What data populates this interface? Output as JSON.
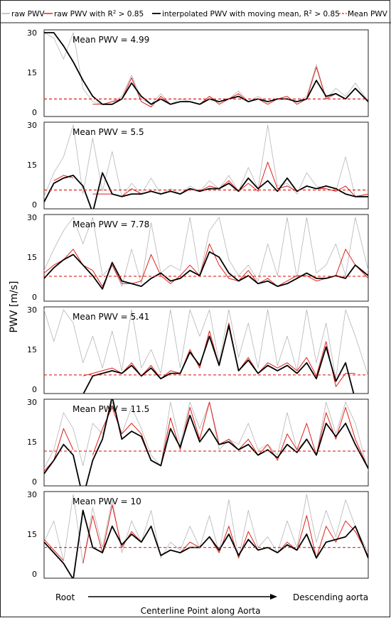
{
  "legend": {
    "raw": "raw PWV",
    "filtered_prefix": "raw PWV with R",
    "filtered_sup": "2",
    "filtered_suffix": " > 0.85",
    "smooth_prefix": "interpolated PWV with moving mean, R",
    "smooth_sup": "2",
    "smooth_suffix": " > 0.85",
    "mean": "Mean PWV"
  },
  "ylabel": "PWV [m/s]",
  "xlabel": "Centerline Point along Aorta",
  "arrow_start_label": "Root",
  "arrow_end_label": "Descending aorta",
  "colors": {
    "raw": "#b5b5b5",
    "filtered": "#e0201b",
    "smooth": "#000000",
    "mean": "#e0201b"
  },
  "chart_data": [
    {
      "type": "line",
      "mean_label": "Mean PWV = 4.99",
      "mean": 4.99,
      "ylim": [
        0,
        30
      ],
      "yticks": [
        0,
        15,
        30
      ],
      "x": [
        0,
        3,
        6,
        9,
        12,
        15,
        18,
        21,
        24,
        27,
        30,
        33,
        36,
        39,
        42,
        45,
        48,
        51,
        54,
        57,
        60,
        63,
        66,
        69,
        72,
        75,
        78,
        81,
        84,
        87,
        90,
        93,
        96,
        100
      ],
      "series": [
        {
          "name": "raw PWV",
          "values": [
            30,
            28,
            20,
            30,
            9,
            4,
            3,
            4,
            6,
            14,
            5,
            3,
            7,
            3,
            5,
            4,
            3,
            6,
            4,
            5,
            8,
            4,
            6,
            4,
            5,
            5,
            4,
            6,
            18,
            5,
            9,
            6,
            11,
            4
          ]
        },
        {
          "name": "raw PWV with R2 > 0.85",
          "values": [
            null,
            null,
            null,
            null,
            null,
            3,
            3,
            4,
            5,
            13,
            4,
            2,
            6,
            3,
            4,
            4,
            3,
            6,
            3,
            5,
            7,
            4,
            5,
            3,
            5,
            6,
            3,
            5,
            17,
            5,
            7,
            5,
            9,
            4
          ]
        },
        {
          "name": "interpolated PWV with moving mean, R2 > 0.85",
          "values": [
            30,
            30,
            25,
            19,
            12,
            6,
            3,
            3,
            5,
            11,
            6,
            3,
            5,
            3,
            4,
            4,
            3,
            5,
            4,
            5,
            6,
            4,
            5,
            4,
            5,
            5,
            4,
            5,
            12,
            6,
            7,
            5,
            9,
            4
          ]
        }
      ]
    },
    {
      "type": "line",
      "mean_label": "Mean PWV = 5.5",
      "mean": 5.5,
      "ylim": [
        0,
        30
      ],
      "yticks": [
        0,
        15,
        30
      ],
      "x": [
        0,
        3,
        6,
        9,
        12,
        15,
        18,
        21,
        24,
        27,
        30,
        33,
        36,
        39,
        42,
        45,
        48,
        51,
        54,
        57,
        60,
        63,
        66,
        69,
        72,
        75,
        78,
        81,
        84,
        87,
        90,
        93,
        96,
        100
      ],
      "series": [
        {
          "name": "raw PWV",
          "values": [
            3,
            12,
            18,
            30,
            4,
            25,
            5,
            20,
            3,
            8,
            4,
            10,
            4,
            6,
            4,
            7,
            5,
            9,
            6,
            11,
            5,
            14,
            6,
            30,
            7,
            8,
            4,
            12,
            7,
            6,
            5,
            18,
            3,
            4
          ]
        },
        {
          "name": "raw PWV with R2 > 0.85",
          "values": [
            null,
            9,
            11,
            10,
            null,
            4,
            4,
            4,
            3,
            6,
            4,
            5,
            4,
            5,
            4,
            6,
            5,
            7,
            6,
            9,
            5,
            8,
            5,
            16,
            6,
            7,
            5,
            7,
            6,
            6,
            5,
            7,
            3,
            4
          ]
        },
        {
          "name": "interpolated PWV with moving mean, R2 > 0.85",
          "values": [
            1,
            8,
            10,
            11,
            7,
            -3,
            12,
            4,
            3,
            4,
            4,
            5,
            4,
            5,
            4,
            6,
            5,
            6,
            6,
            8,
            5,
            10,
            6,
            9,
            5,
            10,
            5,
            7,
            6,
            7,
            6,
            4,
            3,
            3
          ]
        }
      ]
    },
    {
      "type": "line",
      "mean_label": "Mean PWV = 7.78",
      "mean": 7.78,
      "ylim": [
        0,
        30
      ],
      "yticks": [
        0,
        15,
        30
      ],
      "x": [
        0,
        3,
        6,
        9,
        12,
        15,
        18,
        21,
        24,
        27,
        30,
        33,
        36,
        39,
        42,
        45,
        48,
        51,
        54,
        57,
        60,
        63,
        66,
        69,
        72,
        75,
        78,
        81,
        84,
        87,
        90,
        93,
        96,
        100
      ],
      "series": [
        {
          "name": "raw PWV",
          "values": [
            10,
            18,
            25,
            30,
            20,
            30,
            8,
            12,
            4,
            18,
            5,
            28,
            9,
            12,
            10,
            30,
            8,
            25,
            30,
            14,
            8,
            12,
            6,
            20,
            8,
            30,
            7,
            30,
            9,
            12,
            20,
            8,
            30,
            10
          ]
        },
        {
          "name": "raw PWV with R2 > 0.85",
          "values": [
            9,
            12,
            14,
            18,
            12,
            10,
            4,
            12,
            5,
            5,
            6,
            16,
            8,
            5,
            8,
            12,
            8,
            20,
            12,
            7,
            6,
            10,
            5,
            7,
            4,
            6,
            8,
            8,
            6,
            7,
            8,
            18,
            12,
            7
          ]
        },
        {
          "name": "interpolated PWV with moving mean, R2 > 0.85",
          "values": [
            7,
            11,
            14,
            16,
            12,
            8,
            3,
            13,
            6,
            5,
            4,
            7,
            9,
            6,
            7,
            10,
            8,
            17,
            15,
            9,
            6,
            8,
            5,
            6,
            4,
            5,
            7,
            9,
            7,
            7,
            8,
            7,
            12,
            8
          ]
        }
      ]
    },
    {
      "type": "line",
      "mean_label": "Mean PWV = 5.41",
      "mean": 5.41,
      "ylim": [
        0,
        30
      ],
      "yticks": [
        0,
        15,
        30
      ],
      "x": [
        0,
        3,
        6,
        9,
        12,
        15,
        18,
        21,
        24,
        27,
        30,
        33,
        36,
        39,
        42,
        45,
        48,
        51,
        54,
        57,
        60,
        63,
        66,
        69,
        72,
        75,
        78,
        81,
        84,
        87,
        90,
        93,
        96,
        100
      ],
      "series": [
        {
          "name": "raw PWV",
          "values": [
            30,
            18,
            30,
            25,
            10,
            20,
            8,
            22,
            7,
            30,
            8,
            15,
            6,
            30,
            8,
            30,
            20,
            30,
            10,
            30,
            12,
            25,
            8,
            30,
            9,
            20,
            7,
            30,
            10,
            25,
            4,
            30,
            20,
            5
          ]
        },
        {
          "name": "raw PWV with R2 > 0.85",
          "values": [
            null,
            null,
            null,
            null,
            5,
            6,
            7,
            8,
            6,
            10,
            5,
            9,
            4,
            7,
            6,
            15,
            8,
            22,
            9,
            25,
            7,
            12,
            6,
            10,
            8,
            10,
            7,
            12,
            5,
            18,
            1,
            6,
            6,
            null
          ]
        },
        {
          "name": "interpolated PWV with moving mean, R2 > 0.85",
          "values": [
            null,
            null,
            null,
            null,
            -2,
            5,
            6,
            7,
            6,
            9,
            5,
            8,
            4,
            6,
            6,
            14,
            9,
            20,
            9,
            24,
            7,
            11,
            6,
            9,
            7,
            9,
            6,
            10,
            4,
            16,
            3,
            10,
            -4,
            null
          ]
        }
      ]
    },
    {
      "type": "line",
      "mean_label": "Mean PWV = 11.5",
      "mean": 11.5,
      "ylim": [
        0,
        30
      ],
      "yticks": [
        0,
        15,
        30
      ],
      "x": [
        0,
        3,
        6,
        9,
        12,
        15,
        18,
        21,
        24,
        27,
        30,
        33,
        36,
        39,
        42,
        45,
        48,
        51,
        54,
        57,
        60,
        63,
        66,
        69,
        72,
        75,
        78,
        81,
        84,
        87,
        90,
        93,
        96,
        100
      ],
      "series": [
        {
          "name": "raw PWV",
          "values": [
            5,
            12,
            26,
            20,
            6,
            22,
            18,
            30,
            18,
            28,
            20,
            10,
            6,
            30,
            14,
            30,
            20,
            30,
            12,
            16,
            14,
            22,
            12,
            14,
            10,
            26,
            12,
            16,
            10,
            30,
            18,
            30,
            22,
            4
          ]
        },
        {
          "name": "raw PWV with R2 > 0.85",
          "values": [
            4,
            8,
            20,
            12,
            null,
            10,
            20,
            28,
            18,
            22,
            18,
            8,
            6,
            24,
            12,
            28,
            16,
            30,
            14,
            16,
            12,
            16,
            10,
            14,
            8,
            18,
            12,
            22,
            10,
            26,
            16,
            28,
            16,
            5
          ]
        },
        {
          "name": "interpolated PWV with moving mean, R2 > 0.85",
          "values": [
            3,
            8,
            14,
            10,
            -6,
            8,
            16,
            32,
            16,
            19,
            17,
            8,
            6,
            20,
            13,
            25,
            15,
            20,
            14,
            15,
            12,
            14,
            10,
            12,
            9,
            14,
            11,
            16,
            10,
            22,
            17,
            22,
            14,
            5
          ]
        }
      ]
    },
    {
      "type": "line",
      "mean_label": "Mean PWV = 10",
      "mean": 10,
      "ylim": [
        0,
        30
      ],
      "yticks": [
        0,
        15,
        30
      ],
      "x": [
        0,
        3,
        6,
        9,
        12,
        15,
        18,
        21,
        24,
        27,
        30,
        33,
        36,
        39,
        42,
        45,
        48,
        51,
        54,
        57,
        60,
        63,
        66,
        69,
        72,
        75,
        78,
        81,
        84,
        87,
        90,
        93,
        96,
        100
      ],
      "series": [
        {
          "name": "raw PWV",
          "values": [
            12,
            20,
            5,
            30,
            4,
            25,
            10,
            28,
            8,
            20,
            12,
            24,
            6,
            12,
            9,
            18,
            10,
            22,
            8,
            28,
            6,
            24,
            10,
            14,
            8,
            20,
            10,
            30,
            12,
            24,
            14,
            28,
            18,
            8
          ]
        },
        {
          "name": "raw PWV with R2 > 0.85",
          "values": [
            13,
            9,
            5,
            null,
            4,
            22,
            8,
            26,
            10,
            16,
            12,
            18,
            7,
            9,
            8,
            12,
            10,
            14,
            8,
            18,
            6,
            16,
            9,
            10,
            8,
            12,
            9,
            22,
            6,
            18,
            12,
            20,
            16,
            7
          ]
        },
        {
          "name": "interpolated PWV with moving mean, R2 > 0.85",
          "values": [
            12,
            8,
            4,
            -2,
            24,
            10,
            8,
            18,
            11,
            15,
            12,
            18,
            7,
            9,
            8,
            10,
            10,
            14,
            9,
            15,
            7,
            13,
            9,
            10,
            8,
            11,
            9,
            15,
            6,
            12,
            13,
            14,
            18,
            6
          ]
        }
      ]
    }
  ]
}
